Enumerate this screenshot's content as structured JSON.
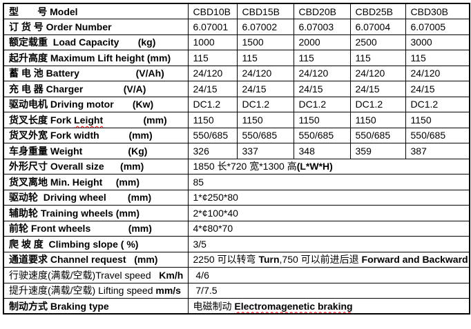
{
  "table": {
    "column_count": 6,
    "rows": [
      {
        "label": [
          {
            "text": "型       号 Model",
            "bold": true
          }
        ],
        "values": [
          "CBD10B",
          "CBD15B",
          "CBD20B",
          "CBD25B",
          "CBD30B"
        ]
      },
      {
        "label": [
          {
            "text": "订 货 号 Order Number",
            "bold": true
          }
        ],
        "values": [
          "6.07001",
          "6.07002",
          "6.07003",
          "6.07004",
          "6.07005"
        ]
      },
      {
        "label": [
          {
            "text": "额定载重  Load Capacity       (kg)",
            "bold": true
          }
        ],
        "values": [
          "1000",
          "1500",
          "2000",
          "2500",
          "3000"
        ]
      },
      {
        "label": [
          {
            "text": "起升高度 Maximum Lift height (mm)",
            "bold": true
          }
        ],
        "values": [
          "115",
          "115",
          "115",
          "115",
          "115"
        ]
      },
      {
        "label": [
          {
            "text": "蓄 电 池 Battery                     (V/Ah)",
            "bold": true
          }
        ],
        "values": [
          "24/120",
          "24/120",
          "24/120",
          "24/120",
          "24/120"
        ]
      },
      {
        "label": [
          {
            "text": "充 电 器 Charger               (V/A)",
            "bold": true
          }
        ],
        "values": [
          "24/15",
          "24/15",
          "24/15",
          "24/15",
          "24/15"
        ]
      },
      {
        "label": [
          {
            "text": "驱动电机 Driving motor       (Kw)",
            "bold": true
          }
        ],
        "values": [
          "DC1.2",
          "DC1.2",
          "DC1.2",
          "DC1.2",
          "DC1.2"
        ]
      },
      {
        "label": [
          {
            "text": "货叉长度 Fork ",
            "bold": true
          },
          {
            "text": "Leight",
            "bold": true,
            "misspelled": true
          },
          {
            "text": "               (mm)",
            "bold": true
          }
        ],
        "values": [
          "1150",
          "1150",
          "1150",
          "1150",
          "1150"
        ]
      },
      {
        "label": [
          {
            "text": "货叉外宽 Fork width           (mm)",
            "bold": true
          }
        ],
        "values": [
          "550/685",
          "550/685",
          "550/685",
          "550/685",
          "550/685"
        ]
      },
      {
        "label": [
          {
            "text": "车身重量 Weight                 (Kg)",
            "bold": true
          }
        ],
        "values": [
          "326",
          "337",
          "348",
          "359",
          "387"
        ]
      },
      {
        "label": [
          {
            "text": "外形尺寸 Overall size      (mm)",
            "bold": true
          }
        ],
        "merged_value": [
          {
            "text": "1850 长*720 宽*1300 高"
          },
          {
            "text": "(L*W*H)",
            "bold": true
          }
        ]
      },
      {
        "label": [
          {
            "text": "货叉离地 Min. Height     (mm)",
            "bold": true
          }
        ],
        "merged_value": [
          {
            "text": "85"
          }
        ]
      },
      {
        "label": [
          {
            "text": "驱动轮  Driving wheel        (mm)",
            "bold": true
          }
        ],
        "merged_value": [
          {
            "text": "1*¢250*80"
          }
        ]
      },
      {
        "label": [
          {
            "text": "辅助轮 Training wheels (mm)",
            "bold": true
          }
        ],
        "merged_value": [
          {
            "text": "2*¢100*40"
          }
        ]
      },
      {
        "label": [
          {
            "text": "前轮 Front wheels              (mm)",
            "bold": true
          }
        ],
        "merged_value": [
          {
            "text": "4*¢80*70"
          }
        ]
      },
      {
        "label": [
          {
            "text": "爬 坡 度  Climbing slope ( %)",
            "bold": true
          }
        ],
        "merged_value": [
          {
            "text": "3/5"
          }
        ]
      },
      {
        "label": [
          {
            "text": "通道要求 Channel request   (mm)",
            "bold": true
          }
        ],
        "merged_value": [
          {
            "text": "2250 可以转弯 "
          },
          {
            "text": "Turn",
            "bold": true
          },
          {
            "text": ",750 可以前进后退 "
          },
          {
            "text": "Forward and Backward",
            "bold": true
          }
        ]
      },
      {
        "label": [
          {
            "text": "行驶速度(满载/空载)Travel speed   "
          },
          {
            "text": "Km/h",
            "bold": true
          }
        ],
        "merged_value": [
          {
            "text": " 4/6"
          }
        ]
      },
      {
        "label": [
          {
            "text": "提升速度(满载/空载) Lifting speed "
          },
          {
            "text": "mm/s",
            "bold": true
          }
        ],
        "merged_value": [
          {
            "text": " 7/7.5"
          }
        ]
      },
      {
        "label": [
          {
            "text": "制动方式 Braking type",
            "bold": true
          }
        ],
        "merged_value": [
          {
            "text": "电磁制动 "
          },
          {
            "text": "Electromagenetic braking",
            "bold": true,
            "misspelled": true
          }
        ]
      }
    ]
  }
}
